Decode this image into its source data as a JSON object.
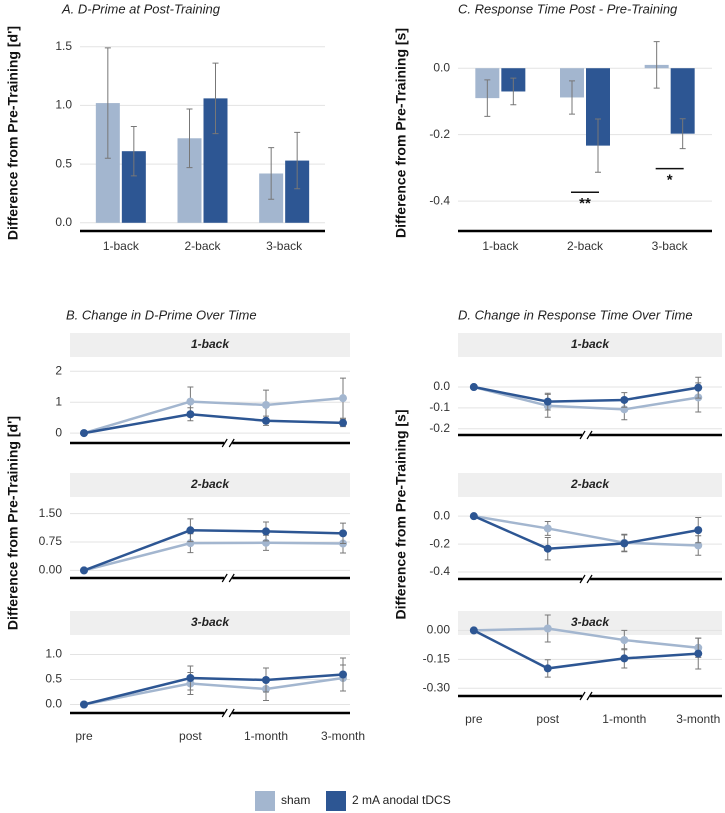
{
  "chart_data": [
    {
      "type": "bar",
      "title": "A. D-Prime at Post-Training",
      "y_label": "Difference from Pre-Training [d']",
      "categories": [
        "1-back",
        "2-back",
        "3-back"
      ],
      "series": [
        {
          "name": "sham",
          "color": "#a3b6cf",
          "values": [
            1.02,
            0.72,
            0.42
          ],
          "errors": [
            0.47,
            0.25,
            0.22
          ]
        },
        {
          "name": "2 mA anodal tDCS",
          "color": "#2d5693",
          "values": [
            0.61,
            1.06,
            0.53
          ],
          "errors": [
            0.21,
            0.3,
            0.24
          ]
        }
      ],
      "ylim": [
        -0.07,
        1.6
      ],
      "yticks": [
        {
          "value": 0,
          "label": "0.0"
        },
        0.5,
        {
          "value": 1,
          "label": "1.0"
        },
        1.5
      ],
      "grid": true
    },
    {
      "type": "line",
      "title": "B. Change in D-Prime Over Time",
      "y_label": "Difference from Pre-Training [d']",
      "categories": [
        "pre",
        "post",
        "1-month",
        "3-month"
      ],
      "facets": [
        {
          "title": "1-back",
          "ylim": [
            -0.32,
            2.3
          ],
          "yticks": [
            0,
            1,
            2
          ],
          "series": [
            {
              "name": "sham",
              "color": "#a3b6cf",
              "values": [
                0,
                1.02,
                0.91,
                1.13
              ],
              "errors": [
                0,
                0.47,
                0.48,
                0.65
              ]
            },
            {
              "name": "2 mA anodal tDCS",
              "color": "#2d5693",
              "values": [
                0,
                0.61,
                0.4,
                0.33
              ],
              "errors": [
                0,
                0.21,
                0.15,
                0.12
              ]
            }
          ]
        },
        {
          "title": "2-back",
          "ylim": [
            -0.2,
            1.86
          ],
          "yticks": [
            {
              "value": 0,
              "label": "0.00"
            },
            {
              "value": 0.75,
              "label": "0.75"
            },
            {
              "value": 1.5,
              "label": "1.50"
            }
          ],
          "series": [
            {
              "name": "sham",
              "color": "#a3b6cf",
              "values": [
                0,
                0.72,
                0.73,
                0.71
              ],
              "errors": [
                0,
                0.25,
                0.2,
                0.25
              ]
            },
            {
              "name": "2 mA anodal tDCS",
              "color": "#2d5693",
              "values": [
                0,
                1.06,
                1.03,
                0.98
              ],
              "errors": [
                0,
                0.3,
                0.25,
                0.27
              ]
            }
          ]
        },
        {
          "title": "3-back",
          "ylim": [
            -0.17,
            1.19
          ],
          "yticks": [
            {
              "value": 0,
              "label": "0.0"
            },
            0.5,
            {
              "value": 1,
              "label": "1.0"
            }
          ],
          "series": [
            {
              "name": "sham",
              "color": "#a3b6cf",
              "values": [
                0,
                0.42,
                0.31,
                0.53
              ],
              "errors": [
                0,
                0.22,
                0.23,
                0.26
              ]
            },
            {
              "name": "2 mA anodal tDCS",
              "color": "#2d5693",
              "values": [
                0,
                0.53,
                0.49,
                0.6
              ],
              "errors": [
                0,
                0.24,
                0.24,
                0.33
              ]
            }
          ]
        }
      ],
      "grid": true
    },
    {
      "type": "bar",
      "title": "C. Response Time Post - Pre-Training",
      "y_label": "Difference from Pre-Training [s]",
      "categories": [
        "1-back",
        "2-back",
        "3-back"
      ],
      "series": [
        {
          "name": "sham",
          "color": "#a3b6cf",
          "values": [
            -0.09,
            -0.088,
            0.01
          ],
          "errors": [
            0.055,
            0.05,
            0.07
          ]
        },
        {
          "name": "2 mA anodal tDCS",
          "color": "#2d5693",
          "values": [
            -0.07,
            -0.233,
            -0.197
          ],
          "errors": [
            0.04,
            0.08,
            0.045
          ]
        }
      ],
      "ylim": [
        -0.49,
        0.1
      ],
      "yticks": [
        {
          "value": 0,
          "label": "0.0"
        },
        -0.2,
        -0.4
      ],
      "annotations": [
        {
          "text": "**",
          "category": "2-back"
        },
        {
          "text": "*",
          "category": "3-back"
        }
      ],
      "grid": true
    },
    {
      "type": "line",
      "title": "D. Change in Response Time Over Time",
      "y_label": "Difference from Pre-Training [s]",
      "categories": [
        "pre",
        "post",
        "1-month",
        "3-month"
      ],
      "facets": [
        {
          "title": "1-back",
          "ylim": [
            -0.23,
            0.12
          ],
          "yticks": [
            {
              "value": 0,
              "label": "0.0"
            },
            -0.1,
            -0.2
          ],
          "series": [
            {
              "name": "sham",
              "color": "#a3b6cf",
              "values": [
                0,
                -0.09,
                -0.107,
                -0.05
              ],
              "errors": [
                0,
                0.055,
                0.05,
                0.07
              ]
            },
            {
              "name": "2 mA anodal tDCS",
              "color": "#2d5693",
              "values": [
                0,
                -0.07,
                -0.062,
                -0.003
              ],
              "errors": [
                0,
                0.04,
                0.035,
                0.05
              ]
            }
          ]
        },
        {
          "title": "2-back",
          "ylim": [
            -0.45,
            0.13
          ],
          "yticks": [
            {
              "value": 0,
              "label": "0.0"
            },
            -0.2,
            -0.4
          ],
          "series": [
            {
              "name": "sham",
              "color": "#a3b6cf",
              "values": [
                0,
                -0.088,
                -0.19,
                -0.21
              ],
              "errors": [
                0,
                0.05,
                0.06,
                0.07
              ]
            },
            {
              "name": "2 mA anodal tDCS",
              "color": "#2d5693",
              "values": [
                0,
                -0.233,
                -0.195,
                -0.1
              ],
              "errors": [
                0,
                0.08,
                0.06,
                0.09
              ]
            }
          ]
        },
        {
          "title": "3-back",
          "ylim": [
            -0.34,
            0.08
          ],
          "yticks": [
            {
              "value": 0,
              "label": "0.00"
            },
            {
              "value": -0.15,
              "label": "-0.15"
            },
            {
              "value": -0.3,
              "label": "-0.30"
            }
          ],
          "series": [
            {
              "name": "sham",
              "color": "#a3b6cf",
              "values": [
                0,
                0.01,
                -0.05,
                -0.09
              ],
              "errors": [
                0,
                0.07,
                0.05,
                0.05
              ]
            },
            {
              "name": "2 mA anodal tDCS",
              "color": "#2d5693",
              "values": [
                0,
                -0.197,
                -0.145,
                -0.12
              ],
              "errors": [
                0,
                0.045,
                0.05,
                0.08
              ]
            }
          ]
        }
      ],
      "grid": true
    }
  ]
}
